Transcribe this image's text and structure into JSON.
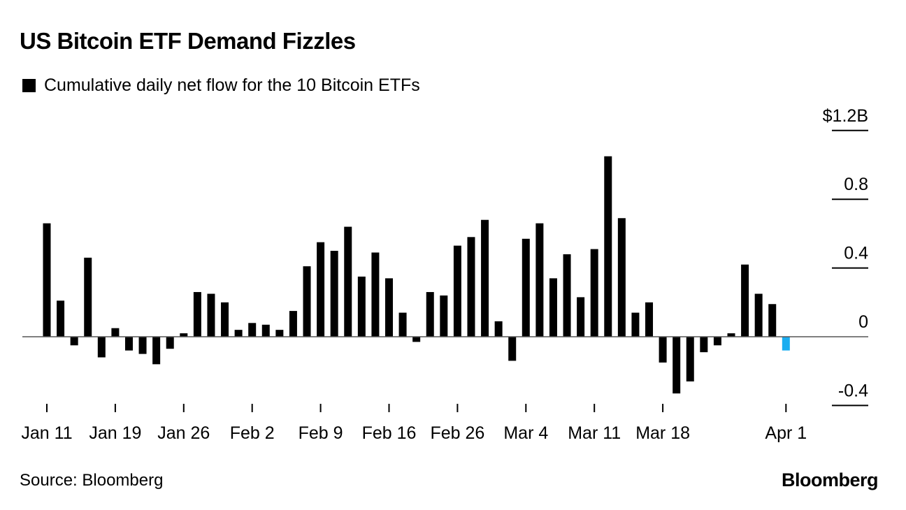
{
  "chart_data": {
    "type": "bar",
    "title": "US Bitcoin ETF Demand Fizzles",
    "legend": [
      "Cumulative daily net flow for the 10 Bitcoin ETFs"
    ],
    "legend_placement": "top-left",
    "xlabel": "",
    "ylabel": "",
    "y_unit_label": "$1.2B",
    "ylim": [
      -0.4,
      1.2
    ],
    "y_ticks": [
      -0.4,
      0,
      0.4,
      0.8,
      1.2
    ],
    "y_tick_labels": [
      "-0.4",
      "0",
      "0.4",
      "0.8",
      "$1.2B"
    ],
    "x_ticks": [
      {
        "index": 0,
        "label": "Jan 11"
      },
      {
        "index": 5,
        "label": "Jan 19"
      },
      {
        "index": 10,
        "label": "Jan 26"
      },
      {
        "index": 15,
        "label": "Feb 2"
      },
      {
        "index": 20,
        "label": "Feb 9"
      },
      {
        "index": 25,
        "label": "Feb 16"
      },
      {
        "index": 30,
        "label": "Feb 26"
      },
      {
        "index": 35,
        "label": "Mar 4"
      },
      {
        "index": 40,
        "label": "Mar 11"
      },
      {
        "index": 45,
        "label": "Mar 18"
      },
      {
        "index": 54,
        "label": "Apr 1"
      }
    ],
    "values": [
      0.66,
      0.21,
      -0.05,
      0.46,
      -0.12,
      0.05,
      -0.08,
      -0.1,
      -0.16,
      -0.07,
      0.02,
      0.26,
      0.25,
      0.2,
      0.04,
      0.08,
      0.07,
      0.04,
      0.15,
      0.41,
      0.55,
      0.5,
      0.64,
      0.35,
      0.49,
      0.34,
      0.14,
      -0.03,
      0.26,
      0.24,
      0.53,
      0.58,
      0.68,
      0.09,
      -0.14,
      0.57,
      0.66,
      0.34,
      0.48,
      0.23,
      0.51,
      1.05,
      0.69,
      0.14,
      0.2,
      -0.15,
      -0.33,
      -0.26,
      -0.09,
      -0.05,
      0.02,
      0.42,
      0.25,
      0.19,
      -0.08
    ],
    "highlight_index": 54,
    "colors": {
      "bar": "#000000",
      "highlight": "#1AADF0",
      "axis": "#000000"
    }
  },
  "source": "Source: Bloomberg",
  "logo": "Bloomberg"
}
